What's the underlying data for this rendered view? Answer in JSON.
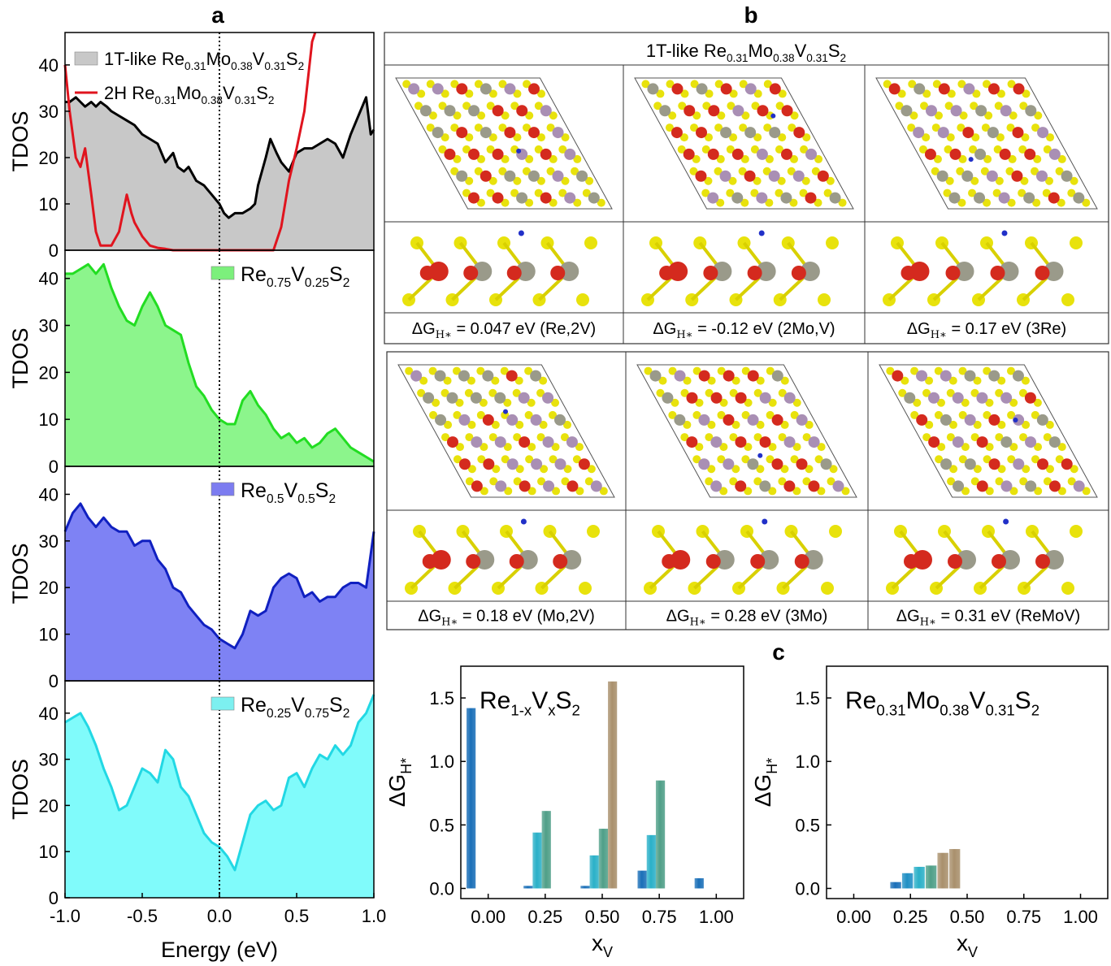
{
  "panel_letters": {
    "a": "a",
    "b": "b",
    "c": "c"
  },
  "tdos_panels": [
    {
      "ylabel": "TDOS",
      "yticks": [
        0,
        10,
        20,
        30,
        40
      ],
      "ylim": [
        0,
        47
      ],
      "legend": [
        {
          "pre": "1T-like ",
          "formula": [
            [
              "Re",
              "0.31"
            ],
            [
              "Mo",
              "0.38"
            ],
            [
              "V",
              "0.31"
            ],
            [
              "S",
              "2"
            ]
          ],
          "style": "fill",
          "color": "#c8c8c8"
        },
        {
          "pre": "2H ",
          "formula": [
            [
              "Re",
              "0.31"
            ],
            [
              "Mo",
              "0.38"
            ],
            [
              "V",
              "0.31"
            ],
            [
              "S",
              "2"
            ]
          ],
          "style": "line",
          "color": "#e0141e"
        }
      ],
      "series": [
        {
          "style": "fill",
          "line_color": "#000000",
          "fill_color": "#c8c8c8",
          "x": [
            -1.0,
            -0.97,
            -0.93,
            -0.9,
            -0.87,
            -0.83,
            -0.8,
            -0.77,
            -0.73,
            -0.7,
            -0.65,
            -0.6,
            -0.55,
            -0.5,
            -0.45,
            -0.4,
            -0.35,
            -0.3,
            -0.27,
            -0.23,
            -0.2,
            -0.15,
            -0.1,
            -0.05,
            0.0,
            0.03,
            0.06,
            0.1,
            0.15,
            0.2,
            0.23,
            0.25,
            0.3,
            0.33,
            0.37,
            0.4,
            0.45,
            0.5,
            0.55,
            0.6,
            0.65,
            0.7,
            0.75,
            0.8,
            0.85,
            0.9,
            0.95,
            0.98,
            1.0
          ],
          "y": [
            32,
            32,
            33,
            32,
            31,
            32,
            31,
            32,
            31,
            30,
            29,
            28,
            27,
            25,
            24,
            23,
            19,
            21,
            18,
            17,
            18,
            15,
            14,
            12,
            10,
            8,
            7,
            8,
            8,
            9,
            10,
            14,
            20,
            24,
            21,
            19,
            17,
            21,
            22,
            22,
            23,
            24,
            23,
            20,
            25,
            29,
            33,
            25,
            26
          ]
        },
        {
          "style": "line",
          "line_color": "#e0141e",
          "x": [
            -1.0,
            -0.97,
            -0.93,
            -0.9,
            -0.87,
            -0.83,
            -0.8,
            -0.77,
            -0.73,
            -0.7,
            -0.65,
            -0.6,
            -0.57,
            -0.55,
            -0.5,
            -0.45,
            -0.4,
            -0.35,
            -0.3,
            0.3,
            0.35,
            0.4,
            0.45,
            0.5,
            0.55,
            0.6,
            0.62
          ],
          "y": [
            40,
            30,
            20,
            18,
            22,
            12,
            4,
            1,
            1,
            1,
            4,
            12,
            8,
            6,
            3,
            1,
            0.5,
            0.3,
            0,
            0,
            0,
            5,
            15,
            22,
            30,
            45,
            47
          ]
        }
      ]
    },
    {
      "ylabel": "TDOS",
      "yticks": [
        0,
        10,
        20,
        30,
        40
      ],
      "ylim": [
        0,
        46
      ],
      "legend": [
        {
          "pre": "",
          "formula": [
            [
              "Re",
              "0.75"
            ],
            [
              "V",
              "0.25"
            ],
            [
              "S",
              "2"
            ]
          ],
          "style": "fill",
          "color": "#7cf07c"
        }
      ],
      "series": [
        {
          "style": "fill",
          "line_color": "#22dd22",
          "fill_color": "#8cf58c",
          "x": [
            -1.0,
            -0.95,
            -0.9,
            -0.85,
            -0.8,
            -0.75,
            -0.7,
            -0.65,
            -0.6,
            -0.55,
            -0.5,
            -0.45,
            -0.4,
            -0.35,
            -0.3,
            -0.25,
            -0.2,
            -0.15,
            -0.1,
            -0.05,
            0.0,
            0.05,
            0.1,
            0.15,
            0.2,
            0.25,
            0.3,
            0.35,
            0.4,
            0.45,
            0.5,
            0.55,
            0.6,
            0.65,
            0.7,
            0.75,
            0.8,
            0.85,
            0.9,
            0.95,
            1.0
          ],
          "y": [
            41,
            41,
            42,
            43,
            41,
            43,
            38,
            34,
            31,
            30,
            34,
            37,
            34,
            30,
            29,
            28,
            22,
            17,
            15,
            12,
            10,
            9,
            9,
            14,
            16,
            13,
            11,
            8,
            6,
            7,
            5,
            6,
            4,
            5,
            7,
            8,
            6,
            4,
            3,
            2,
            1
          ]
        }
      ]
    },
    {
      "ylabel": "TDOS",
      "yticks": [
        0,
        10,
        20,
        30,
        40
      ],
      "ylim": [
        0,
        46
      ],
      "legend": [
        {
          "pre": "",
          "formula": [
            [
              "Re",
              "0.5"
            ],
            [
              "V",
              "0.5"
            ],
            [
              "S",
              "2"
            ]
          ],
          "style": "fill",
          "color": "#7c7cf0"
        }
      ],
      "series": [
        {
          "style": "fill",
          "line_color": "#1020c0",
          "fill_color": "#7e82f4",
          "x": [
            -1.0,
            -0.95,
            -0.9,
            -0.85,
            -0.8,
            -0.75,
            -0.7,
            -0.65,
            -0.6,
            -0.55,
            -0.5,
            -0.45,
            -0.4,
            -0.35,
            -0.3,
            -0.25,
            -0.2,
            -0.15,
            -0.1,
            -0.05,
            0.0,
            0.05,
            0.1,
            0.15,
            0.2,
            0.25,
            0.3,
            0.35,
            0.4,
            0.45,
            0.5,
            0.55,
            0.6,
            0.65,
            0.7,
            0.75,
            0.8,
            0.85,
            0.9,
            0.95,
            1.0
          ],
          "y": [
            32,
            36,
            38,
            35,
            33,
            35,
            33,
            32,
            32,
            29,
            30,
            30,
            26,
            24,
            20,
            19,
            16,
            14,
            12,
            11,
            9,
            8,
            7,
            10,
            15,
            14,
            15,
            20,
            22,
            23,
            22,
            18,
            19,
            17,
            18,
            18,
            20,
            21,
            21,
            20,
            32
          ]
        }
      ]
    },
    {
      "ylabel": "TDOS",
      "yticks": [
        0,
        10,
        20,
        30,
        40
      ],
      "ylim": [
        0,
        47
      ],
      "legend": [
        {
          "pre": "",
          "formula": [
            [
              "Re",
              "0.25"
            ],
            [
              "V",
              "0.75"
            ],
            [
              "S",
              "2"
            ]
          ],
          "style": "fill",
          "color": "#7cf0f0"
        }
      ],
      "series": [
        {
          "style": "fill",
          "line_color": "#22d8e4",
          "fill_color": "#80fbfb",
          "x": [
            -1.0,
            -0.95,
            -0.9,
            -0.85,
            -0.8,
            -0.75,
            -0.7,
            -0.65,
            -0.6,
            -0.55,
            -0.5,
            -0.45,
            -0.4,
            -0.35,
            -0.3,
            -0.25,
            -0.2,
            -0.15,
            -0.1,
            -0.05,
            0.0,
            0.05,
            0.1,
            0.15,
            0.2,
            0.25,
            0.3,
            0.35,
            0.4,
            0.45,
            0.5,
            0.55,
            0.6,
            0.65,
            0.7,
            0.75,
            0.8,
            0.85,
            0.9,
            0.95,
            1.0
          ],
          "y": [
            38,
            39,
            40,
            37,
            33,
            28,
            24,
            19,
            20,
            24,
            28,
            27,
            25,
            32,
            30,
            24,
            22,
            18,
            14,
            12,
            11,
            9,
            6,
            12,
            18,
            20,
            21,
            19,
            20,
            26,
            27,
            24,
            28,
            31,
            30,
            33,
            31,
            33,
            38,
            40,
            44
          ]
        }
      ]
    }
  ],
  "tdos_x": {
    "label": "Energy (eV)",
    "ticks": [
      "-1.0",
      "-0.5",
      "0.0",
      "0.5",
      "1.0"
    ],
    "tick_values": [
      -1.0,
      -0.5,
      0.0,
      0.5,
      1.0
    ],
    "xlim": [
      -1.0,
      1.0
    ]
  },
  "structures": {
    "header": {
      "pre": "1T-like ",
      "formula": [
        [
          "Re",
          "0.31"
        ],
        [
          "Mo",
          "0.38"
        ],
        [
          "V",
          "0.31"
        ],
        [
          "S",
          "2"
        ]
      ]
    },
    "groups": [
      {
        "captions": [
          {
            "label": "0.047 eV (Re,2V)"
          },
          {
            "label": "-0.12 eV (2Mo,V)"
          },
          {
            "label": "0.17 eV (3Re)"
          }
        ]
      },
      {
        "captions": [
          {
            "label": "0.18 eV (Mo,2V)"
          },
          {
            "label": "0.28 eV (3Mo)"
          },
          {
            "label": "0.31 eV (ReMoV)"
          }
        ]
      }
    ],
    "caption_prefix": "ΔG",
    "caption_sub": "H∗",
    "caption_eq": " = "
  },
  "chart_data": [
    {
      "type": "bar",
      "title_formula": [
        [
          "Re",
          "1-x"
        ],
        [
          "V",
          "x"
        ],
        [
          "S",
          "2"
        ]
      ],
      "xlabel": "x",
      "xlabel_sub": "V",
      "ylabel": "ΔG",
      "ylabel_sub": "H*",
      "xlim": [
        -0.12,
        1.12
      ],
      "ylim": [
        -0.08,
        1.75
      ],
      "xticks": [
        "0.00",
        "0.25",
        "0.50",
        "0.75",
        "1.00"
      ],
      "xtick_values": [
        0.0,
        0.25,
        0.5,
        0.75,
        1.0
      ],
      "yticks": [
        "0.0",
        "0.5",
        "1.0",
        "1.5"
      ],
      "ytick_values": [
        0.0,
        0.5,
        1.0,
        1.5
      ],
      "bar_width": 0.04,
      "bars": [
        {
          "x": -0.075,
          "value": 1.42,
          "color": "#1a6fb8"
        },
        {
          "x": 0.175,
          "value": 0.02,
          "color": "#1a6fb8"
        },
        {
          "x": 0.215,
          "value": 0.44,
          "color": "#2ab0c8"
        },
        {
          "x": 0.255,
          "value": 0.61,
          "color": "#4f9f88"
        },
        {
          "x": 0.425,
          "value": 0.02,
          "color": "#1a6fb8"
        },
        {
          "x": 0.465,
          "value": 0.26,
          "color": "#2ab0c8"
        },
        {
          "x": 0.505,
          "value": 0.47,
          "color": "#4f9f88"
        },
        {
          "x": 0.545,
          "value": 1.63,
          "color": "#a9906c"
        },
        {
          "x": 0.675,
          "value": 0.14,
          "color": "#1a6fb8"
        },
        {
          "x": 0.715,
          "value": 0.42,
          "color": "#2ab0c8"
        },
        {
          "x": 0.755,
          "value": 0.85,
          "color": "#4f9f88"
        },
        {
          "x": 0.925,
          "value": 0.08,
          "color": "#1a6fb8"
        }
      ]
    },
    {
      "type": "bar",
      "title_formula": [
        [
          "Re",
          "0.31"
        ],
        [
          "Mo",
          "0.38"
        ],
        [
          "V",
          "0.31"
        ],
        [
          "S",
          "2"
        ]
      ],
      "xlabel": "x",
      "xlabel_sub": "V",
      "ylabel": "ΔG",
      "ylabel_sub": "H*",
      "xlim": [
        -0.12,
        1.12
      ],
      "ylim": [
        -0.08,
        1.75
      ],
      "xticks": [
        "0.00",
        "0.25",
        "0.50",
        "0.75",
        "1.00"
      ],
      "xtick_values": [
        0.0,
        0.25,
        0.5,
        0.75,
        1.0
      ],
      "yticks": [
        "0.0",
        "0.5",
        "1.0",
        "1.5"
      ],
      "ytick_values": [
        0.0,
        0.5,
        1.0,
        1.5
      ],
      "bar_width": 0.048,
      "bars": [
        {
          "x": 0.185,
          "value": 0.05,
          "color": "#1a6fb8"
        },
        {
          "x": 0.237,
          "value": 0.12,
          "color": "#1f8fc4"
        },
        {
          "x": 0.289,
          "value": 0.17,
          "color": "#2ab0c8"
        },
        {
          "x": 0.341,
          "value": 0.18,
          "color": "#4f9f88"
        },
        {
          "x": 0.393,
          "value": 0.28,
          "color": "#a9906c"
        },
        {
          "x": 0.445,
          "value": 0.31,
          "color": "#a9906c"
        }
      ]
    }
  ]
}
